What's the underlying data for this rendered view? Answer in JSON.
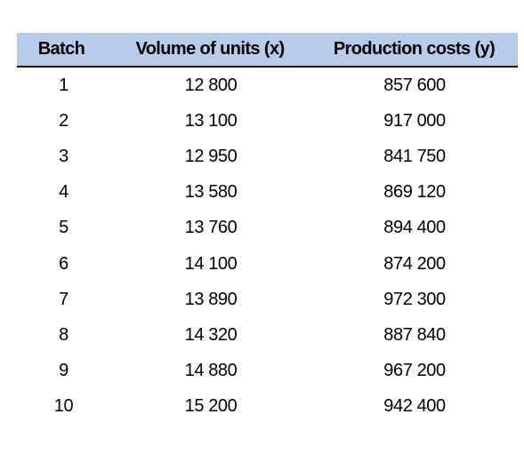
{
  "table": {
    "headers": [
      "Batch",
      "Volume of units (x)",
      "Production costs (y)"
    ],
    "rows": [
      [
        "1",
        "12 800",
        "857 600"
      ],
      [
        "2",
        "13 100",
        "917 000"
      ],
      [
        "3",
        "12 950",
        "841 750"
      ],
      [
        "4",
        "13 580",
        "869 120"
      ],
      [
        "5",
        "13 760",
        "894 400"
      ],
      [
        "6",
        "14 100",
        "874 200"
      ],
      [
        "7",
        "13 890",
        "972 300"
      ],
      [
        "8",
        "14 320",
        "887 840"
      ],
      [
        "9",
        "14 880",
        "967 200"
      ],
      [
        "10",
        "15 200",
        "942 400"
      ]
    ]
  },
  "colors": {
    "header_background": "#b7cbea",
    "header_rule": "#000000"
  }
}
